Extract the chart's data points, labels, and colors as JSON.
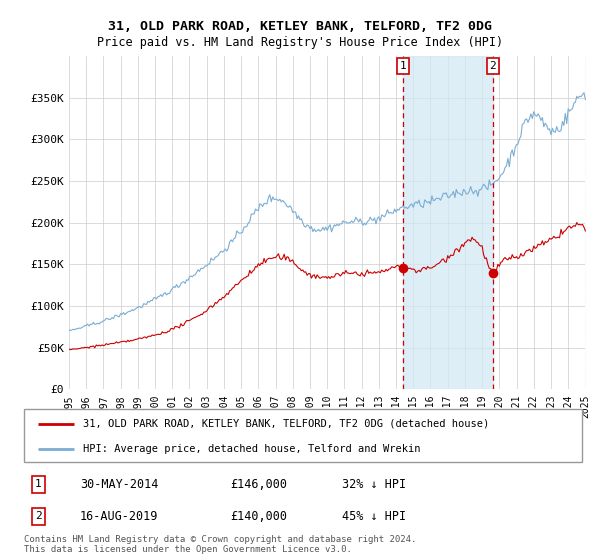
{
  "title": "31, OLD PARK ROAD, KETLEY BANK, TELFORD, TF2 0DG",
  "subtitle": "Price paid vs. HM Land Registry's House Price Index (HPI)",
  "hpi_label": "HPI: Average price, detached house, Telford and Wrekin",
  "property_label": "31, OLD PARK ROAD, KETLEY BANK, TELFORD, TF2 0DG (detached house)",
  "transaction1_date": "30-MAY-2014",
  "transaction1_price": 146000,
  "transaction1_pct": "32% ↓ HPI",
  "transaction2_date": "16-AUG-2019",
  "transaction2_price": 140000,
  "transaction2_pct": "45% ↓ HPI",
  "hpi_color": "#7aadd4",
  "property_color": "#cc0000",
  "vline_color": "#cc0000",
  "footer_text": "Contains HM Land Registry data © Crown copyright and database right 2024.\nThis data is licensed under the Open Government Licence v3.0.",
  "ylim": [
    0,
    400000
  ],
  "yticks": [
    0,
    50000,
    100000,
    150000,
    200000,
    250000,
    300000,
    350000
  ],
  "ytick_labels": [
    "£0",
    "£50K",
    "£100K",
    "£150K",
    "£200K",
    "£250K",
    "£300K",
    "£350K"
  ],
  "transaction1_year": 2014.41,
  "transaction2_year": 2019.62,
  "xlim_min": 1995.0,
  "xlim_max": 2025.5,
  "hatch_start": 2025.0
}
